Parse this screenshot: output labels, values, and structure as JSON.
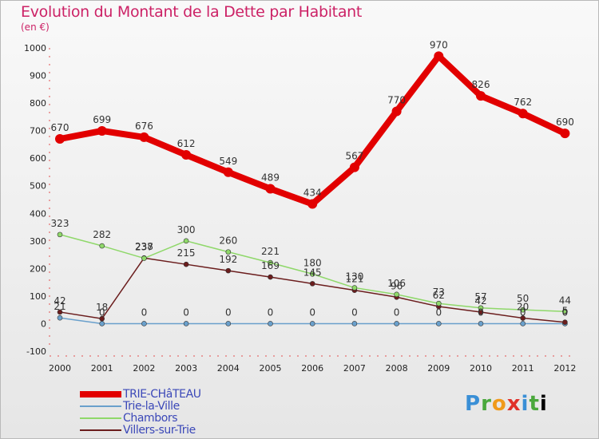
{
  "title": "Evolution du Montant de la Dette par Habitant",
  "subtitle": "(en €)",
  "logo_text": "Proxiti",
  "chart_data": {
    "type": "line",
    "title": "Evolution du Montant de la Dette par Habitant",
    "subtitle": "(en €)",
    "xlabel": "",
    "ylabel": "",
    "ylim": [
      -100,
      1000
    ],
    "yticks": [
      -100,
      0,
      100,
      200,
      300,
      400,
      500,
      600,
      700,
      800,
      900,
      1000
    ],
    "grid": false,
    "legend_position": "bottom-left",
    "categories": [
      "2000",
      "2001",
      "2002",
      "2003",
      "2004",
      "2005",
      "2006",
      "2007",
      "2008",
      "2009",
      "2010",
      "2011",
      "2012"
    ],
    "series": [
      {
        "name": "TRIE-CHâTEAU",
        "color": "#e20000",
        "values": [
          670,
          699,
          676,
          612,
          549,
          489,
          434,
          567,
          770,
          970,
          826,
          762,
          690
        ],
        "labels": [
          "670",
          "699",
          "676",
          "612",
          "549",
          "489",
          "434",
          "567",
          "770",
          "970",
          "826",
          "762",
          "690"
        ]
      },
      {
        "name": "Trie-la-Ville",
        "color": "#6aa0cc",
        "values": [
          21,
          0,
          0,
          0,
          0,
          0,
          0,
          0,
          0,
          0,
          0,
          0,
          0
        ],
        "labels": [
          "21",
          "0",
          "0",
          "0",
          "0",
          "0",
          "0",
          "0",
          "0",
          "0",
          "0",
          "0",
          "0"
        ]
      },
      {
        "name": "Chambors",
        "color": "#8fd86a",
        "values": [
          323,
          282,
          237,
          300,
          260,
          221,
          180,
          130,
          106,
          73,
          57,
          50,
          44
        ],
        "labels": [
          "323",
          "282",
          "237",
          "300",
          "260",
          "221",
          "180",
          "130",
          "106",
          "73",
          "57",
          "50",
          "44"
        ]
      },
      {
        "name": "Villers-sur-Trie",
        "color": "#6b1d1d",
        "values": [
          42,
          18,
          238,
          215,
          192,
          169,
          145,
          121,
          96,
          62,
          42,
          20,
          5
        ],
        "labels": [
          "42",
          "18",
          "238",
          "215",
          "192",
          "169",
          "145",
          "121",
          "96",
          "62",
          "42",
          "20",
          "5"
        ]
      }
    ]
  }
}
